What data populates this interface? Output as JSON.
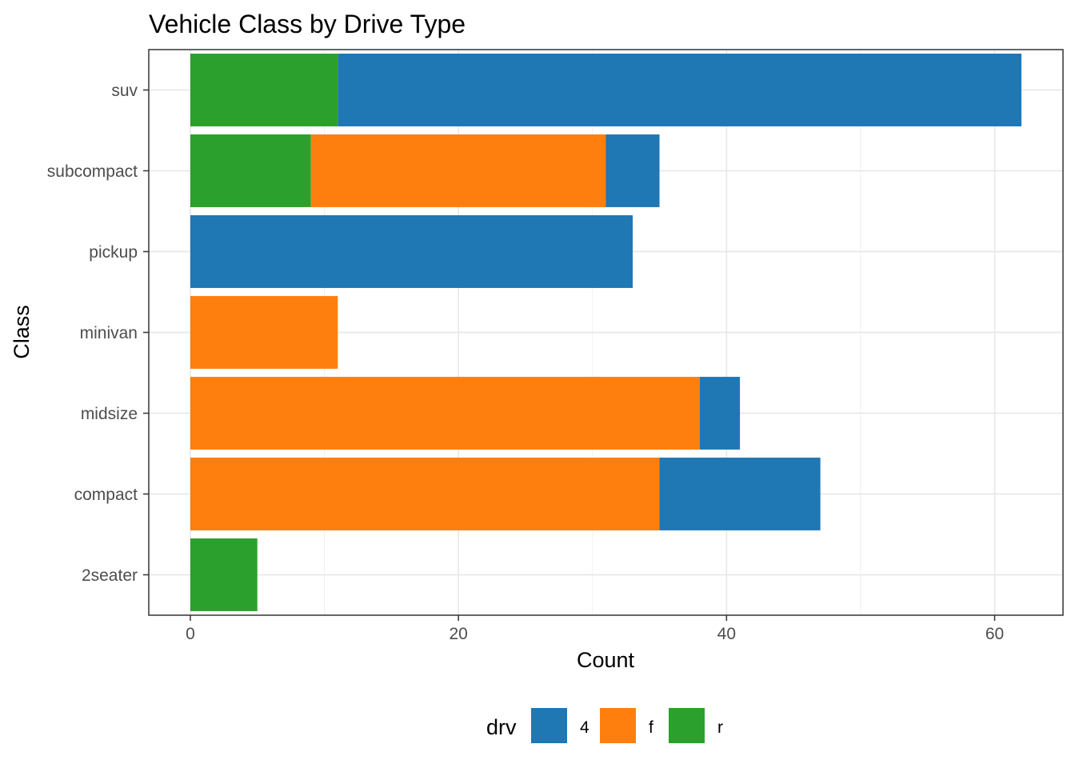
{
  "chart_data": {
    "type": "bar",
    "orientation": "horizontal",
    "stacked": true,
    "title": "Vehicle Class by Drive Type",
    "xlabel": "Count",
    "ylabel": "Class",
    "categories": [
      "2seater",
      "compact",
      "midsize",
      "minivan",
      "pickup",
      "subcompact",
      "suv"
    ],
    "series": [
      {
        "name": "4",
        "color": "#1f77b4",
        "values": [
          0,
          12,
          3,
          0,
          33,
          4,
          51
        ]
      },
      {
        "name": "f",
        "color": "#ff7f0e",
        "values": [
          0,
          35,
          38,
          11,
          0,
          22,
          0
        ]
      },
      {
        "name": "r",
        "color": "#2ca02c",
        "values": [
          5,
          0,
          0,
          0,
          0,
          9,
          11
        ]
      }
    ],
    "stack_order_from_zero": [
      "r",
      "f",
      "4"
    ],
    "xlim": [
      -3.1,
      65.1
    ],
    "xticks": [
      0,
      20,
      40,
      60
    ],
    "grid": true,
    "legend": {
      "title": "drv",
      "position": "bottom",
      "entries": [
        "4",
        "f",
        "r"
      ]
    }
  }
}
